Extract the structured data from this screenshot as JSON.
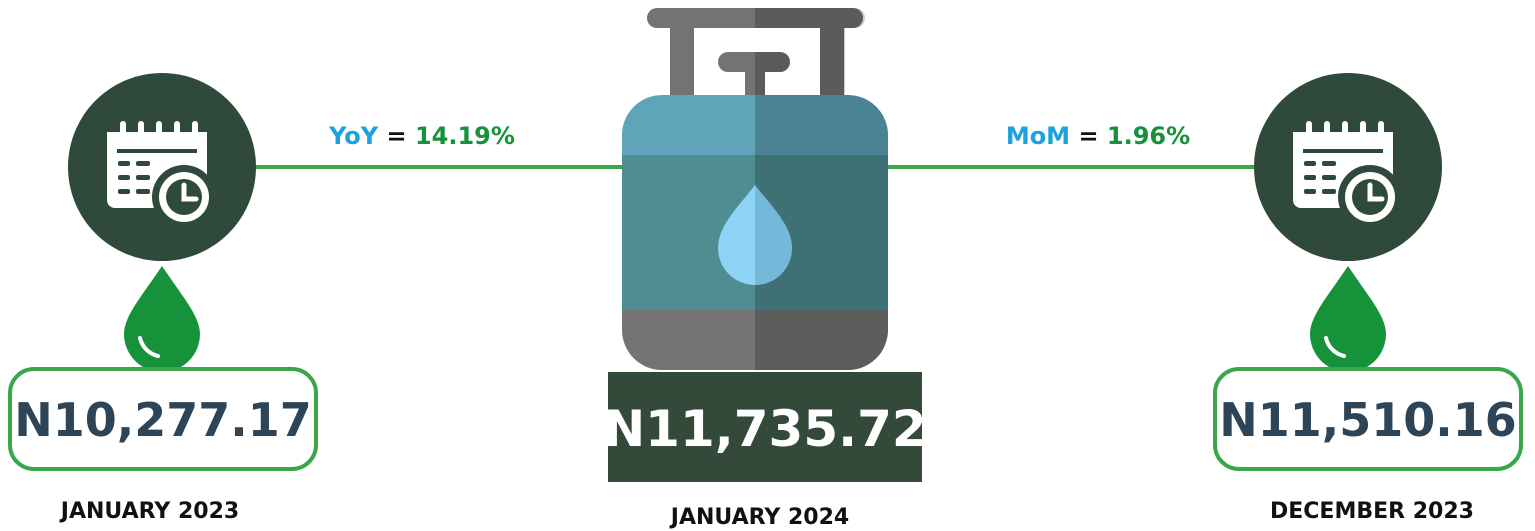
{
  "left": {
    "price": "N10,277.17",
    "date": "JANUARY 2023"
  },
  "center": {
    "price": "N11,735.72",
    "date": "JANUARY 2024"
  },
  "right": {
    "price": "N11,510.16",
    "date": "DECEMBER 2023"
  },
  "yoy": {
    "label": "YoY",
    "equals": "=",
    "value": "14.19%"
  },
  "mom": {
    "label": "MoM",
    "equals": "=",
    "value": "1.96%"
  }
}
